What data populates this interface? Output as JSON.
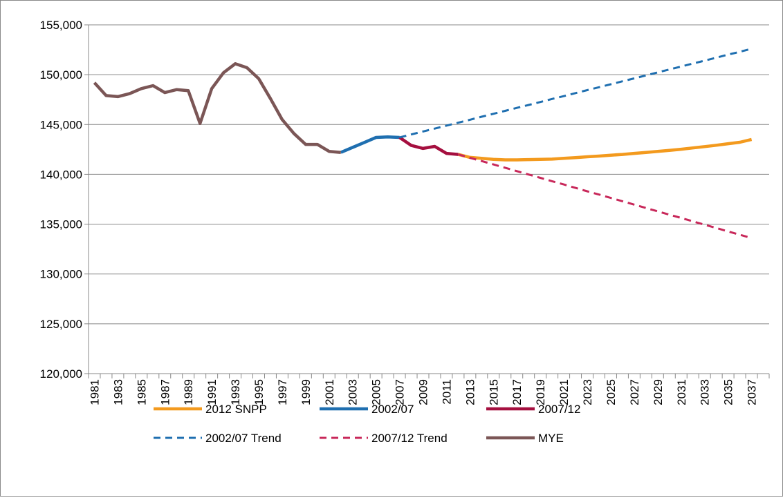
{
  "chart_data": {
    "type": "line",
    "categories": [
      "1981",
      null,
      "1983",
      null,
      "1985",
      null,
      "1987",
      null,
      "1989",
      null,
      "1991",
      null,
      "1993",
      null,
      "1995",
      null,
      "1997",
      null,
      "1999",
      null,
      "2001",
      null,
      "2003",
      null,
      "2005",
      null,
      "2007",
      null,
      "2009",
      null,
      "2011",
      null,
      "2013",
      null,
      "2015",
      null,
      "2017",
      null,
      "2019",
      null,
      "2021",
      null,
      "2023",
      null,
      "2025",
      null,
      "2027",
      null,
      "2029",
      null,
      "2031",
      null,
      "2033",
      null,
      "2035",
      null,
      "2037",
      null
    ],
    "ylim": [
      120000,
      155000
    ],
    "yticks": [
      {
        "value": 120000,
        "label": "120,000"
      },
      {
        "value": 125000,
        "label": "125,000"
      },
      {
        "value": 130000,
        "label": "130,000"
      },
      {
        "value": 135000,
        "label": "135,000"
      },
      {
        "value": 140000,
        "label": "140,000"
      },
      {
        "value": 145000,
        "label": "145,000"
      },
      {
        "value": 150000,
        "label": "150,000"
      },
      {
        "value": 155000,
        "label": "155,000"
      }
    ],
    "grid": true,
    "series": [
      {
        "name": "2012 SNPP",
        "color": "#f39a1e",
        "dash": false,
        "values": [
          null,
          null,
          null,
          null,
          null,
          null,
          null,
          null,
          null,
          null,
          null,
          null,
          null,
          null,
          null,
          null,
          null,
          null,
          null,
          null,
          null,
          null,
          null,
          null,
          null,
          null,
          null,
          null,
          null,
          null,
          null,
          142000,
          141700,
          141600,
          141500,
          141450,
          141450,
          141480,
          141500,
          141530,
          141600,
          141680,
          141760,
          141830,
          141920,
          142000,
          142100,
          142200,
          142300,
          142400,
          142520,
          142650,
          142780,
          142920,
          143070,
          143220,
          143500,
          null
        ]
      },
      {
        "name": "2002/07",
        "color": "#1f6fb0",
        "dash": false,
        "values": [
          null,
          null,
          null,
          null,
          null,
          null,
          null,
          null,
          null,
          null,
          null,
          null,
          null,
          null,
          null,
          null,
          null,
          null,
          null,
          null,
          null,
          142200,
          142700,
          143200,
          143700,
          143750,
          143700,
          null,
          null,
          null,
          null,
          null,
          null,
          null,
          null,
          null,
          null,
          null,
          null,
          null,
          null,
          null,
          null,
          null,
          null,
          null,
          null,
          null,
          null,
          null,
          null,
          null,
          null,
          null,
          null,
          null,
          null,
          null
        ]
      },
      {
        "name": "2007/12",
        "color": "#a50f3f",
        "dash": false,
        "values": [
          null,
          null,
          null,
          null,
          null,
          null,
          null,
          null,
          null,
          null,
          null,
          null,
          null,
          null,
          null,
          null,
          null,
          null,
          null,
          null,
          null,
          null,
          null,
          null,
          null,
          null,
          143700,
          142900,
          142600,
          142800,
          142100,
          142000,
          null,
          null,
          null,
          null,
          null,
          null,
          null,
          null,
          null,
          null,
          null,
          null,
          null,
          null,
          null,
          null,
          null,
          null,
          null,
          null,
          null,
          null,
          null,
          null,
          null,
          null
        ]
      },
      {
        "name": "2002/07 Trend",
        "color": "#1f6fb0",
        "dash": true,
        "values": [
          null,
          null,
          null,
          null,
          null,
          null,
          null,
          null,
          null,
          null,
          null,
          null,
          null,
          null,
          null,
          null,
          null,
          null,
          null,
          null,
          null,
          null,
          null,
          null,
          null,
          null,
          143700,
          144000,
          144300,
          144590,
          144890,
          145180,
          145480,
          145780,
          146070,
          146370,
          146670,
          146960,
          147260,
          147560,
          147850,
          148150,
          148450,
          148740,
          149040,
          149340,
          149630,
          149930,
          150230,
          150520,
          150820,
          151120,
          151410,
          151710,
          152010,
          152300,
          152600,
          null
        ]
      },
      {
        "name": "2007/12 Trend",
        "color": "#c8285a",
        "dash": true,
        "values": [
          null,
          null,
          null,
          null,
          null,
          null,
          null,
          null,
          null,
          null,
          null,
          null,
          null,
          null,
          null,
          null,
          null,
          null,
          null,
          null,
          null,
          null,
          null,
          null,
          null,
          null,
          null,
          null,
          null,
          null,
          null,
          142000,
          141660,
          141330,
          140990,
          140660,
          140320,
          139980,
          139650,
          139310,
          138980,
          138640,
          138300,
          137970,
          137630,
          137300,
          136960,
          136620,
          136290,
          135950,
          135620,
          135280,
          134940,
          134610,
          134270,
          133940,
          133600,
          null
        ]
      },
      {
        "name": "MYE",
        "color": "#7b5656",
        "dash": false,
        "values": [
          149200,
          147900,
          147800,
          148100,
          148600,
          148900,
          148200,
          148500,
          148400,
          145100,
          148600,
          150200,
          151100,
          150700,
          149600,
          147600,
          145500,
          144100,
          143000,
          143000,
          142300,
          142200,
          null,
          null,
          null,
          null,
          null,
          null,
          null,
          null,
          null,
          null,
          null,
          null,
          null,
          null,
          null,
          null,
          null,
          null,
          null,
          null,
          null,
          null,
          null,
          null,
          null,
          null,
          null,
          null,
          null,
          null,
          null,
          null,
          null,
          null,
          null,
          null
        ]
      }
    ]
  }
}
